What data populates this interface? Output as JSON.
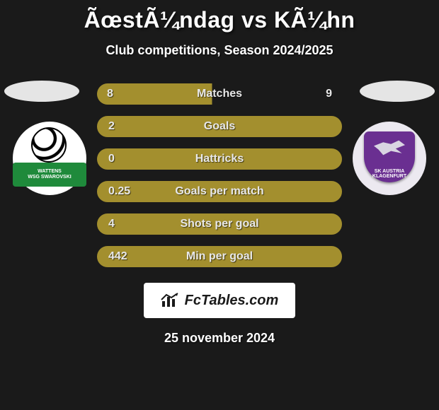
{
  "title": "ÃœstÃ¼ndag vs KÃ¼hn",
  "subtitle": "Club competitions, Season 2024/2025",
  "date": "25 november 2024",
  "logo_text": "FcTables.com",
  "team_left": {
    "name": "WSG Swarovski Wattens",
    "stripe_top": "WATTENS",
    "stripe_sub": "WSG SWAROVSKI",
    "stripe_color": "#1f8a3b"
  },
  "team_right": {
    "name": "SK Austria Klagenfurt",
    "shield_top": "SK AUSTRIA",
    "shield_sub": "KLAGENFURT",
    "shield_color": "#6a2f91"
  },
  "colors": {
    "background": "#1a1a1a",
    "ellipse": "#e5e5e5",
    "bar_fill": "#a38f2e",
    "bar_empty": "#1a1a1a",
    "bar_border": "#a38f2e",
    "text": "#e8e8e8",
    "logo_bg": "#ffffff",
    "logo_fg": "#1a1a1a"
  },
  "bars": [
    {
      "label": "Matches",
      "left": "8",
      "right": "9",
      "left_pct": 47,
      "border": false
    },
    {
      "label": "Goals",
      "left": "2",
      "right": "",
      "left_pct": 100,
      "border": true
    },
    {
      "label": "Hattricks",
      "left": "0",
      "right": "",
      "left_pct": 100,
      "border": true
    },
    {
      "label": "Goals per match",
      "left": "0.25",
      "right": "",
      "left_pct": 100,
      "border": true
    },
    {
      "label": "Shots per goal",
      "left": "4",
      "right": "",
      "left_pct": 100,
      "border": true
    },
    {
      "label": "Min per goal",
      "left": "442",
      "right": "",
      "left_pct": 100,
      "border": true
    }
  ]
}
